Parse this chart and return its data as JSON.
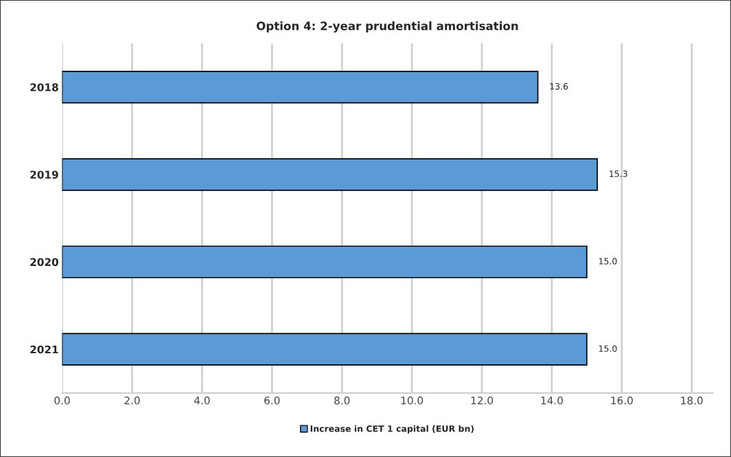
{
  "chart_data": {
    "type": "bar",
    "orientation": "horizontal",
    "title": "Option 4: 2-year prudential amortisation",
    "categories": [
      "2018",
      "2019",
      "2020",
      "2021"
    ],
    "series": [
      {
        "name": "Increase in CET 1 capital (EUR bn)",
        "color": "#5b9bd5",
        "values": [
          13.6,
          15.3,
          15.0,
          15.0
        ],
        "value_labels": [
          "13.6",
          "15.3",
          "15.0",
          "15.0"
        ]
      }
    ],
    "xlim": [
      0,
      18.6
    ],
    "xticks": [
      {
        "value": 0,
        "label": "0.0"
      },
      {
        "value": 2,
        "label": "2.0"
      },
      {
        "value": 4,
        "label": "4.0"
      },
      {
        "value": 6,
        "label": "6.0"
      },
      {
        "value": 8,
        "label": "8.0"
      },
      {
        "value": 10,
        "label": "10.0"
      },
      {
        "value": 12,
        "label": "12.0"
      },
      {
        "value": 14,
        "label": "14.0"
      },
      {
        "value": 16,
        "label": "16.0"
      },
      {
        "value": 18,
        "label": "18.0"
      }
    ],
    "grid": "x",
    "legend": "bottom"
  }
}
